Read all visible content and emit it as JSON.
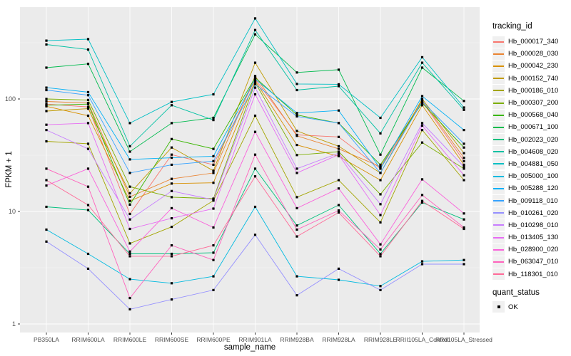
{
  "colors": {
    "panel_bg": "#EBEBEB",
    "grid_major": "#FFFFFF",
    "grid_minor": "#FFFFFF",
    "tick_mark": "#333333",
    "tick_text": "#4D4D4D",
    "title_text": "#000000",
    "marker": "#000000",
    "legend_key_bg": "#F0F0F0"
  },
  "chart_data": {
    "type": "line",
    "title": "",
    "xlabel": "sample_name",
    "ylabel": "FPKM + 1",
    "y_scale": "log10",
    "y_ticks": [
      1,
      10,
      100
    ],
    "y_tick_labels": [
      "1",
      "10",
      "100"
    ],
    "y_minor_ticks": [
      3.162,
      31.62,
      316.2
    ],
    "ylim": [
      1,
      650
    ],
    "grid": true,
    "legend_position": "right",
    "legend_title": "tracking_id",
    "legend2_title": "quant_status",
    "quant_label": "OK",
    "categories": [
      "PB350LA",
      "RRIM600LA",
      "RRIM600LE",
      "RRIM600SE",
      "RRIM600PE",
      "RRIM901LA",
      "RRIM928BA",
      "RRIM928LA",
      "RRIM928LE",
      "RRII105LA_Control",
      "RRII105LA_Stressed"
    ],
    "series": [
      {
        "name": "Hb_000017_340",
        "color": "#F8766D",
        "values": [
          90,
          85,
          9.5,
          32,
          26,
          150,
          48,
          46,
          24,
          95,
          28
        ]
      },
      {
        "name": "Hb_000028_030",
        "color": "#EA8331",
        "values": [
          95,
          92,
          13.5,
          19.5,
          22,
          160,
          47,
          36,
          25,
          97,
          30
        ]
      },
      {
        "name": "Hb_000042_230",
        "color": "#D89000",
        "values": [
          86,
          71,
          12.4,
          17.7,
          18,
          145,
          39,
          31,
          19,
          88,
          26
        ]
      },
      {
        "name": "Hb_000152_740",
        "color": "#C09B00",
        "values": [
          78,
          82,
          14.5,
          37,
          23,
          210,
          52,
          38,
          22,
          100,
          33
        ]
      },
      {
        "name": "Hb_000186_010",
        "color": "#A3A500",
        "values": [
          42,
          40,
          5.2,
          7.3,
          12.5,
          71,
          13.4,
          19,
          8,
          53,
          19
        ]
      },
      {
        "name": "Hb_000307_200",
        "color": "#7CAE00",
        "values": [
          100,
          98,
          16.6,
          13.4,
          13,
          140,
          31.7,
          34,
          14.2,
          41,
          24
        ]
      },
      {
        "name": "Hb_000568_040",
        "color": "#39B600",
        "values": [
          88,
          90,
          11.5,
          44,
          36,
          155,
          72,
          61,
          26,
          92,
          37
        ]
      },
      {
        "name": "Hb_000671_100",
        "color": "#00BB4E",
        "values": [
          190,
          205,
          34,
          61,
          68,
          375,
          172,
          182,
          32,
          190,
          96
        ]
      },
      {
        "name": "Hb_002023_020",
        "color": "#00BF7D",
        "values": [
          11,
          10.3,
          4.2,
          4.2,
          4.3,
          24,
          7.5,
          11.4,
          4.2,
          12,
          8.5
        ]
      },
      {
        "name": "Hb_004608_020",
        "color": "#00C1A3",
        "values": [
          305,
          275,
          38,
          88,
          65,
          410,
          120,
          130,
          49.5,
          210,
          80
        ]
      },
      {
        "name": "Hb_004881_050",
        "color": "#00BFC4",
        "values": [
          330,
          340,
          61,
          94,
          110,
          520,
          136,
          135,
          68,
          235,
          84
        ]
      },
      {
        "name": "Hb_005000_100",
        "color": "#00BAE0",
        "values": [
          6.9,
          4.2,
          2.5,
          2.3,
          2.65,
          11,
          2.65,
          2.47,
          2.17,
          3.6,
          3.7
        ]
      },
      {
        "name": "Hb_005288_120",
        "color": "#00B0F6",
        "values": [
          126,
          115,
          29,
          30,
          31,
          150,
          75,
          79,
          24,
          106,
          53
        ]
      },
      {
        "name": "Hb_009118_010",
        "color": "#35A2FF",
        "values": [
          120,
          108,
          22,
          26,
          28,
          135,
          70,
          61,
          22,
          95,
          40
        ]
      },
      {
        "name": "Hb_010261_020",
        "color": "#9590FF",
        "values": [
          5.4,
          3.1,
          1.35,
          1.65,
          2.0,
          6.2,
          1.8,
          3.1,
          2.0,
          3.4,
          3.4
        ]
      },
      {
        "name": "Hb_010298_010",
        "color": "#C77CFF",
        "values": [
          53,
          36,
          8.5,
          15.2,
          12.7,
          126,
          24,
          33,
          11.6,
          61,
          25
        ]
      },
      {
        "name": "Hb_013405_130",
        "color": "#E76BF3",
        "values": [
          59,
          61,
          7.0,
          8.7,
          10.6,
          110,
          22,
          32,
          9.3,
          58,
          21
        ]
      },
      {
        "name": "Hb_028900_020",
        "color": "#FA62DB",
        "values": [
          17,
          24,
          4.4,
          10.7,
          7.2,
          51,
          10.7,
          16,
          5.1,
          19.3,
          9.6
        ]
      },
      {
        "name": "Hb_063047_010",
        "color": "#FF62BC",
        "values": [
          24,
          16.6,
          1.7,
          5.0,
          3.7,
          32,
          6.9,
          10.2,
          4.6,
          14,
          7.2
        ]
      },
      {
        "name": "Hb_118301_010",
        "color": "#FF6A98",
        "values": [
          19,
          11.4,
          4.0,
          4.0,
          5.0,
          20.5,
          6.0,
          9.8,
          4.0,
          12.4,
          7.0
        ]
      }
    ]
  }
}
